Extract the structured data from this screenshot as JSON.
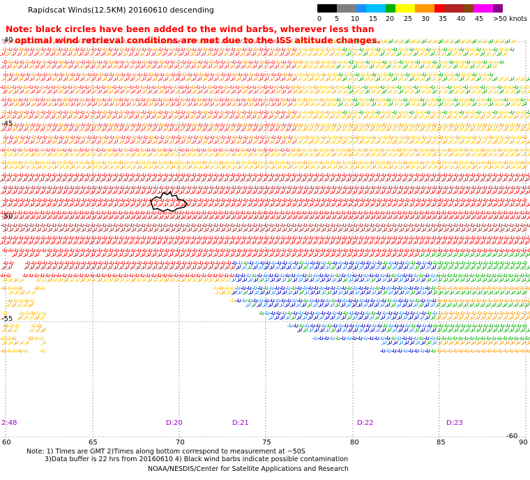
{
  "header": {
    "title": "Rapidscat Winds(12.5KM) 20160610 descending",
    "note_line1": "Note: black circles have been added to the wind barbs, wherever less than",
    "note_line2": "optimal wind retrieval conditions are met due to the ISS altitude changes."
  },
  "legend": {
    "labels": [
      "0",
      "5",
      "10",
      "15",
      "20",
      "25",
      "30",
      "35",
      "40",
      "45",
      ">50 knots"
    ],
    "colors": [
      "#000000",
      "#7f7f7f",
      "#1e90ff",
      "#00bfff",
      "#00b000",
      "#ffff00",
      "#ff9900",
      "#ff0000",
      "#b22222",
      "#8b4513",
      "#ff00ff",
      "#8b008b"
    ]
  },
  "map": {
    "lon_labels": [
      "60",
      "65",
      "70",
      "75",
      "80",
      "85",
      "90"
    ],
    "lat_labels": [
      "-40",
      "-45",
      "-50",
      "-55",
      "-60"
    ],
    "time_labels": [
      "2:48",
      "D:20",
      "D:21",
      "D:22",
      "D:23"
    ]
  },
  "footer": {
    "line1": "Note: 1) Times are GMT 2)Times along bottom correspond to measurement at ~50S",
    "line2": "3)Data buffer is 22 hrs from 20160610 4) Black wind barbs indicate possible contamination",
    "line3": "NOAA/NESDIS/Center for Satellite Applications and Research"
  }
}
